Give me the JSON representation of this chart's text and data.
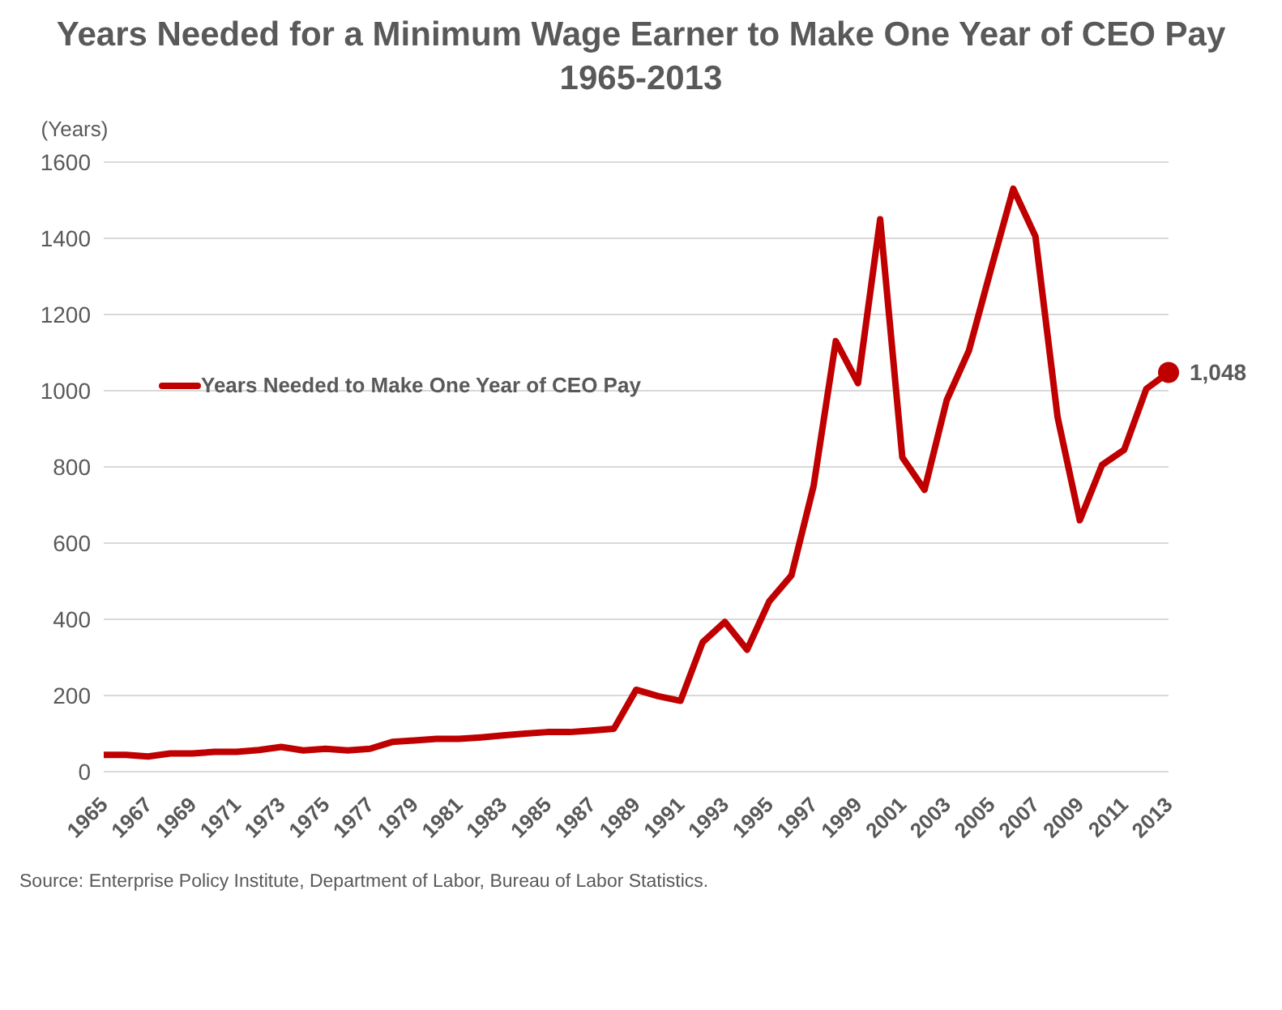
{
  "chart_data": {
    "type": "line",
    "title": "Years Needed for a Minimum Wage Earner to Make One Year of CEO Pay\n1965-2013",
    "ylabel": "(Years)",
    "categories": [
      "1965",
      null,
      "1967",
      null,
      "1969",
      null,
      "1971",
      null,
      "1973",
      null,
      "1975",
      null,
      "1977",
      null,
      "1979",
      null,
      "1981",
      null,
      "1983",
      null,
      "1985",
      null,
      "1987",
      null,
      "1989",
      null,
      "1991",
      null,
      "1993",
      null,
      "1995",
      null,
      "1997",
      null,
      "1999",
      null,
      "2001",
      null,
      "2003",
      null,
      "2005",
      null,
      "2007",
      null,
      "2009",
      null,
      "2011",
      null,
      "2013"
    ],
    "series": [
      {
        "name": "Years Needed to Make One Year of CEO Pay",
        "color": "#c00000",
        "values": [
          44,
          44,
          40,
          48,
          48,
          52,
          52,
          57,
          65,
          56,
          60,
          56,
          60,
          78,
          82,
          86,
          86,
          90,
          95,
          100,
          104,
          104,
          108,
          113,
          215,
          198,
          186,
          340,
          393,
          320,
          447,
          515,
          750,
          1130,
          1020,
          1450,
          825,
          740,
          975,
          1105,
          1320,
          1530,
          1405,
          930,
          660,
          805,
          845,
          1005,
          1048
        ],
        "value_labels": [
          null,
          null,
          null,
          null,
          null,
          null,
          null,
          null,
          null,
          null,
          null,
          null,
          null,
          null,
          null,
          null,
          null,
          null,
          null,
          null,
          null,
          null,
          null,
          null,
          null,
          null,
          null,
          null,
          null,
          null,
          null,
          null,
          null,
          null,
          null,
          null,
          null,
          null,
          null,
          null,
          null,
          null,
          null,
          null,
          null,
          null,
          null,
          null,
          "1,048"
        ]
      }
    ],
    "ylim": [
      0,
      1600
    ],
    "yticks": [
      0,
      200,
      400,
      600,
      800,
      1000,
      1200,
      1400,
      1600
    ],
    "grid": "y",
    "legend": "left",
    "annotations": [
      "Source:  Enterprise Policy Institute, Department of Labor, Bureau of Labor Statistics."
    ]
  }
}
